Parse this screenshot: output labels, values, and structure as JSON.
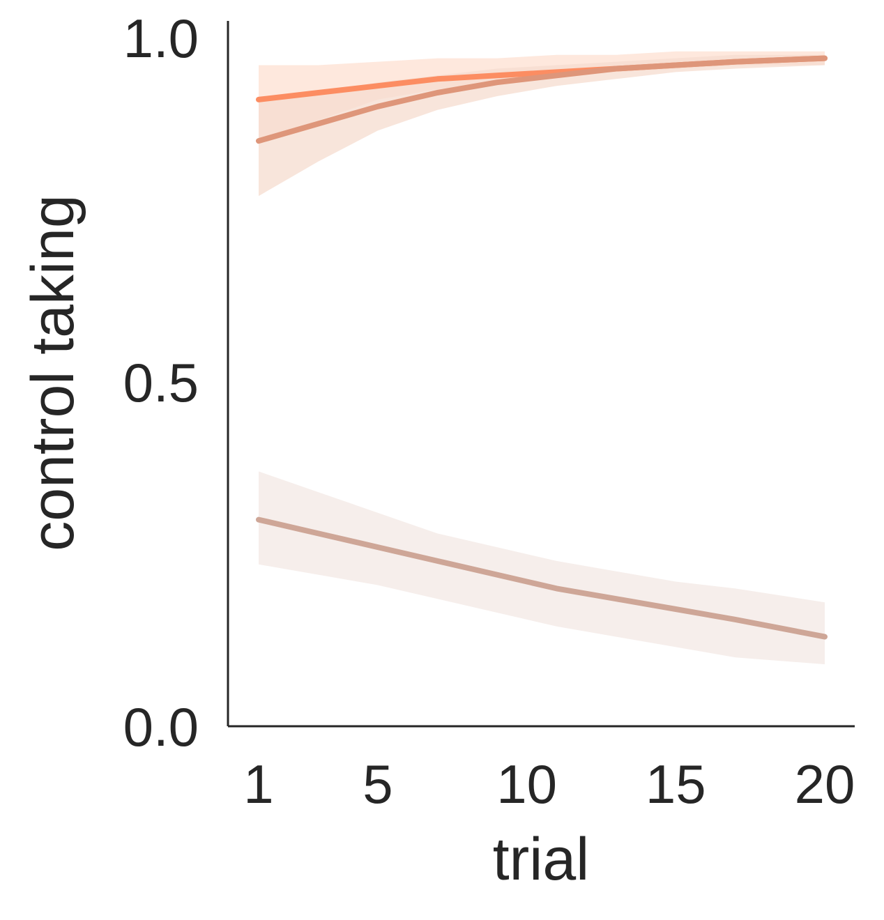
{
  "chart_data": {
    "type": "line",
    "xlabel": "trial",
    "ylabel": "control taking",
    "xlim": [
      1,
      20
    ],
    "ylim": [
      0.0,
      1.0
    ],
    "x_ticks": [
      1,
      5,
      10,
      15,
      20
    ],
    "x_tick_labels": [
      "1",
      "5",
      "10",
      "15",
      "20"
    ],
    "y_ticks": [
      0.0,
      0.5,
      1.0
    ],
    "y_tick_labels": [
      "0.0",
      "0.5",
      "1.0"
    ],
    "grid": false,
    "x": [
      1,
      3,
      5,
      7,
      9,
      11,
      13,
      15,
      17,
      20
    ],
    "series": [
      {
        "color": "#fc8d62",
        "band_color": "#fde0d2",
        "values": [
          0.91,
          0.92,
          0.93,
          0.94,
          0.945,
          0.95,
          0.955,
          0.96,
          0.965,
          0.97
        ],
        "ci_low": [
          0.85,
          0.88,
          0.91,
          0.925,
          0.935,
          0.945,
          0.95,
          0.955,
          0.96,
          0.96
        ],
        "ci_high": [
          0.96,
          0.96,
          0.965,
          0.97,
          0.97,
          0.975,
          0.975,
          0.98,
          0.98,
          0.98
        ]
      },
      {
        "color": "#de967a",
        "band_color": "#f6dccf",
        "values": [
          0.85,
          0.875,
          0.9,
          0.92,
          0.935,
          0.945,
          0.955,
          0.96,
          0.965,
          0.97
        ],
        "ci_low": [
          0.77,
          0.82,
          0.865,
          0.895,
          0.915,
          0.93,
          0.94,
          0.95,
          0.955,
          0.96
        ],
        "ci_high": [
          0.91,
          0.92,
          0.935,
          0.945,
          0.955,
          0.96,
          0.965,
          0.97,
          0.975,
          0.975
        ]
      },
      {
        "color": "#cea697",
        "band_color": "#f3e8e4",
        "values": [
          0.3,
          0.28,
          0.26,
          0.24,
          0.22,
          0.2,
          0.185,
          0.17,
          0.155,
          0.13
        ],
        "ci_low": [
          0.235,
          0.22,
          0.205,
          0.185,
          0.165,
          0.145,
          0.13,
          0.115,
          0.1,
          0.09
        ],
        "ci_high": [
          0.37,
          0.34,
          0.31,
          0.28,
          0.26,
          0.24,
          0.225,
          0.21,
          0.2,
          0.18
        ]
      }
    ]
  }
}
